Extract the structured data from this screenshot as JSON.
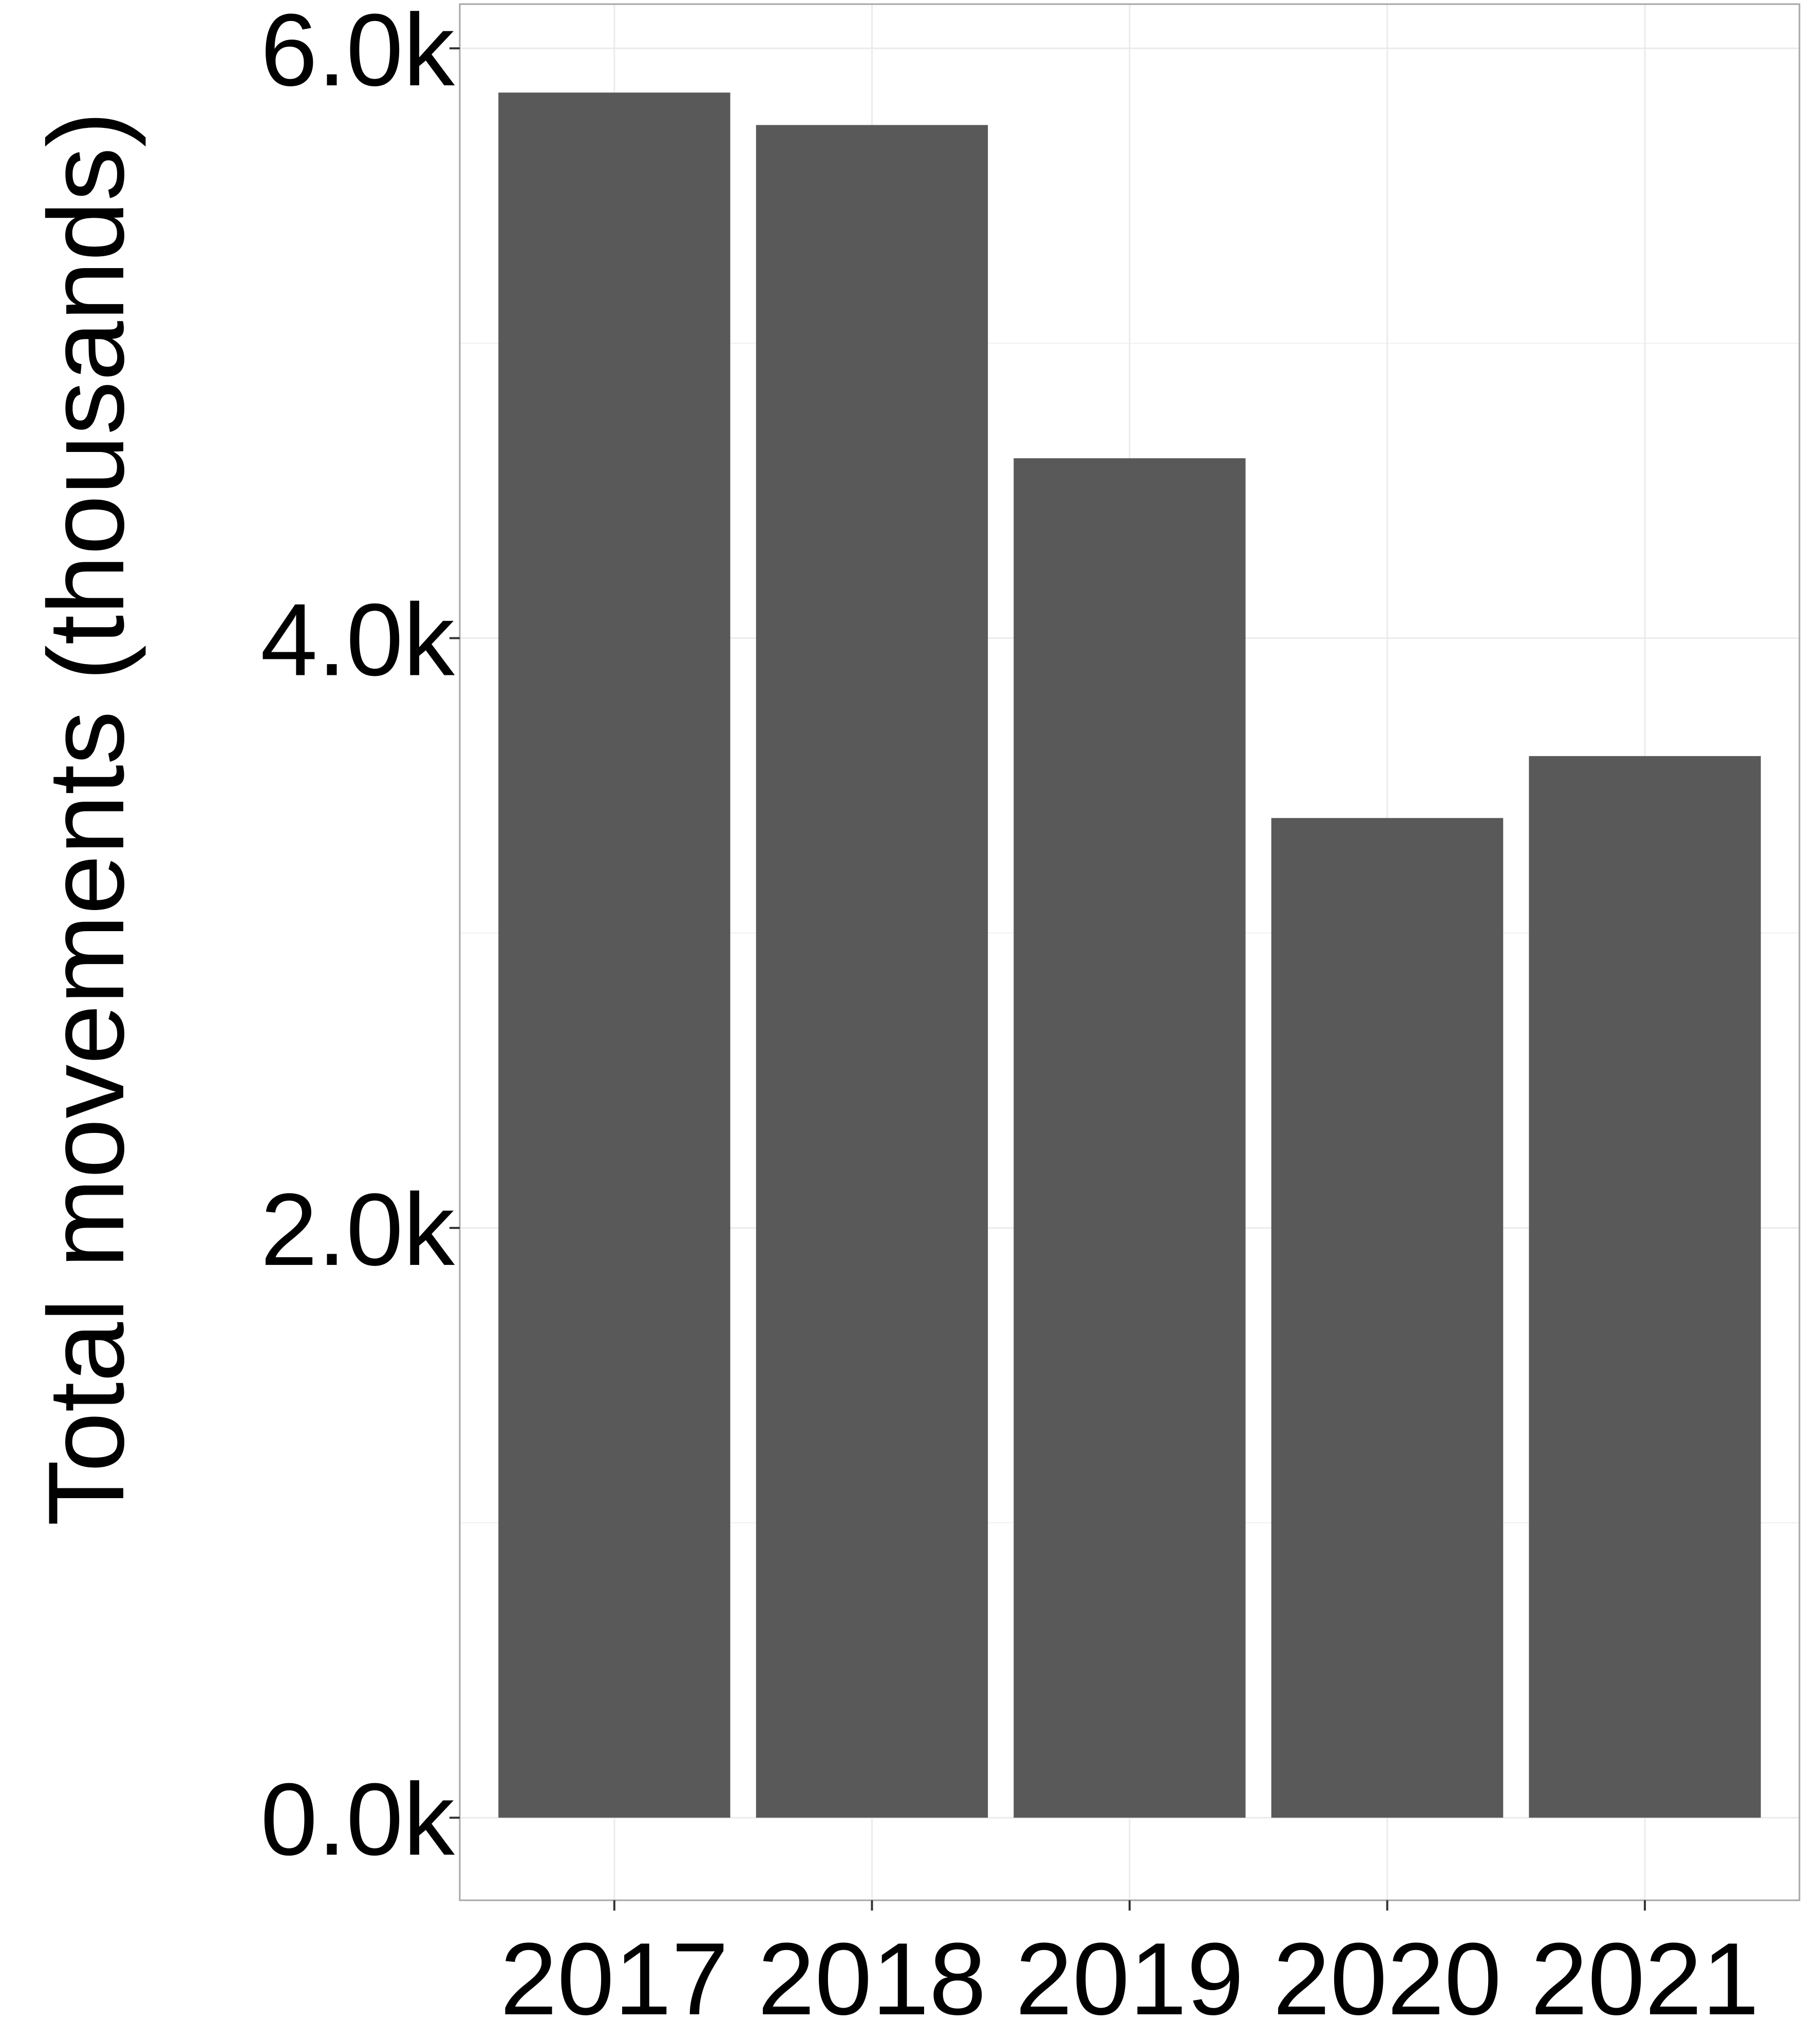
{
  "chart_data": {
    "type": "bar",
    "categories": [
      "2017",
      "2018",
      "2019",
      "2020",
      "2021"
    ],
    "values": [
      5850,
      5740,
      4610,
      3390,
      3600
    ],
    "title": "",
    "xlabel": "",
    "ylabel": "Total movements (thousands)",
    "ylim": [
      -280,
      6150
    ],
    "yticks": [
      0,
      2000,
      4000,
      6000
    ],
    "ytick_labels": [
      "0.0k",
      "2.0k",
      "4.0k",
      "6.0k"
    ],
    "grid": true,
    "legend": "none",
    "colors": {
      "bar": "#595959",
      "grid": "#ebebeb",
      "border": "#a6a6a6",
      "background": "#ffffff"
    }
  }
}
